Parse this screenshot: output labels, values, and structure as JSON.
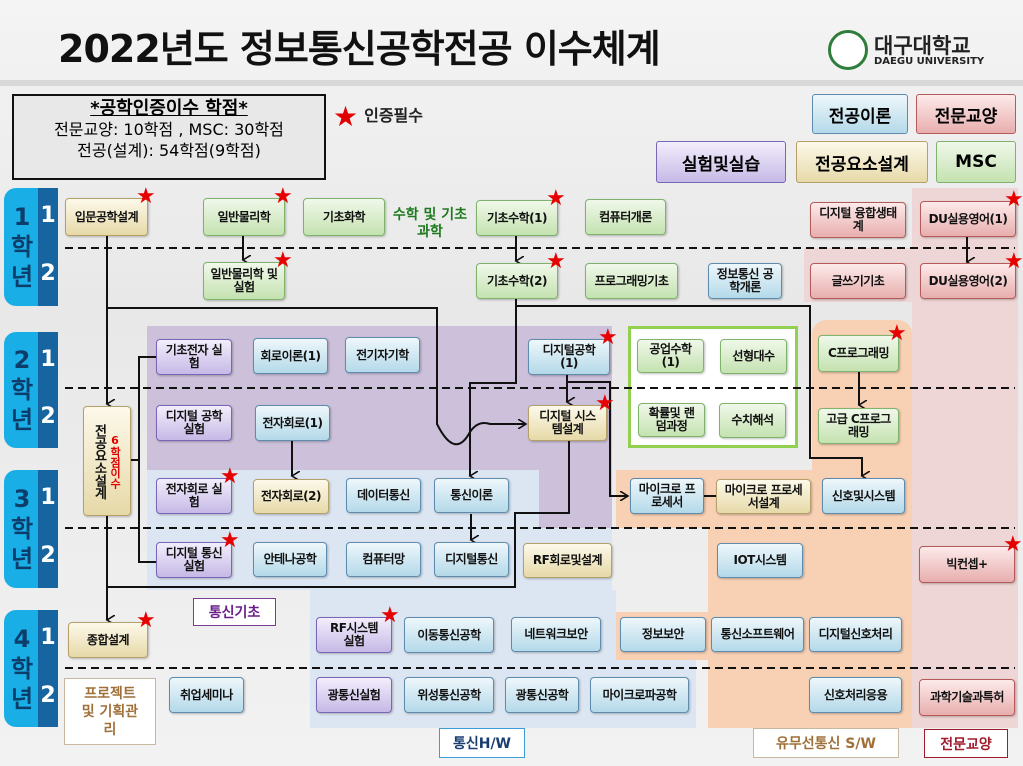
{
  "header": {
    "title": "2022년도 정보통신공학전공 이수체계",
    "logo_ko": "대구대학교",
    "logo_en": "DAEGU UNIVERSITY"
  },
  "credits": {
    "heading": "*공학인증이수 학점*",
    "line1": "전문교양: 10학점 , MSC: 30학점",
    "line2": "전공(설계): 54학점(9학점)"
  },
  "required_legend": {
    "icon": "red-star-icon",
    "label": "인증필수"
  },
  "legend": [
    {
      "label": "전공이론",
      "color": "#b4d9e9"
    },
    {
      "label": "전문교양",
      "color": "#e8aeae"
    },
    {
      "label": "실험및실습",
      "color": "#c6b9e6"
    },
    {
      "label": "전공요소설계",
      "color": "#e6d9a8"
    },
    {
      "label": "MSC",
      "color": "#c4e2b0"
    }
  ],
  "years": [
    {
      "year": "1",
      "word": [
        "학",
        "년"
      ],
      "semesters": [
        "1",
        "2"
      ]
    },
    {
      "year": "2",
      "word": [
        "학",
        "년"
      ],
      "semesters": [
        "1",
        "2"
      ]
    },
    {
      "year": "3",
      "word": [
        "학",
        "년"
      ],
      "semesters": [
        "1",
        "2"
      ]
    },
    {
      "year": "4",
      "word": [
        "학",
        "년"
      ],
      "semesters": [
        "1",
        "2"
      ]
    }
  ],
  "msc_group_label": "수학 및 기초과학",
  "design_elective": {
    "label": "전공요소설계",
    "note": "6학점이수"
  },
  "project_label": "프로젝트 및 기획관리",
  "tracks": {
    "comm_basic": "통신기초",
    "comm_hw": "통신H/W",
    "sw": "유무선통신 S/W",
    "liberal": "전문교양"
  },
  "courses": [
    {
      "label": "입문공학설계",
      "type": "design",
      "required": true
    },
    {
      "label": "일반물리학",
      "type": "msc",
      "required": true
    },
    {
      "label": "기초화학",
      "type": "msc",
      "required": false
    },
    {
      "label": "기초수학(1)",
      "type": "msc",
      "required": true
    },
    {
      "label": "컴퓨터개론",
      "type": "msc",
      "required": false
    },
    {
      "label": "디지털 융합생태계",
      "type": "liberal",
      "required": false
    },
    {
      "label": "DU실용영어(1)",
      "type": "liberal",
      "required": true
    },
    {
      "label": "일반물리학 및 실험",
      "type": "msc",
      "required": true
    },
    {
      "label": "기초수학(2)",
      "type": "msc",
      "required": true
    },
    {
      "label": "프로그래밍기초",
      "type": "msc",
      "required": false
    },
    {
      "label": "정보통신 공학개론",
      "type": "major",
      "required": false
    },
    {
      "label": "글쓰기기초",
      "type": "liberal",
      "required": false
    },
    {
      "label": "DU실용영어(2)",
      "type": "liberal",
      "required": true
    },
    {
      "label": "기초전자 실험",
      "type": "lab",
      "required": false
    },
    {
      "label": "회로이론(1)",
      "type": "major",
      "required": false
    },
    {
      "label": "전기자기학",
      "type": "major",
      "required": false
    },
    {
      "label": "디지털공학(1)",
      "type": "major",
      "required": true
    },
    {
      "label": "공업수학(1)",
      "type": "msc",
      "required": false
    },
    {
      "label": "선형대수",
      "type": "msc",
      "required": false
    },
    {
      "label": "C프로그래밍",
      "type": "msc",
      "required": true
    },
    {
      "label": "디지털 공학실험",
      "type": "lab",
      "required": false
    },
    {
      "label": "전자회로(1)",
      "type": "major",
      "required": false
    },
    {
      "label": "디지털 시스템설계",
      "type": "design",
      "required": true
    },
    {
      "label": "확률및 랜덤과정",
      "type": "msc",
      "required": false
    },
    {
      "label": "수치해석",
      "type": "msc",
      "required": false
    },
    {
      "label": "고급 C프로그래밍",
      "type": "msc",
      "required": false
    },
    {
      "label": "전자회로 실험",
      "type": "lab",
      "required": true
    },
    {
      "label": "전자회로(2)",
      "type": "design",
      "required": false
    },
    {
      "label": "데이터통신",
      "type": "major",
      "required": false
    },
    {
      "label": "통신이론",
      "type": "major",
      "required": false
    },
    {
      "label": "마이크로 프로세서",
      "type": "major",
      "required": false
    },
    {
      "label": "마이크로 프로세서설계",
      "type": "design",
      "required": false
    },
    {
      "label": "신호및시스템",
      "type": "major",
      "required": false
    },
    {
      "label": "디지털 통신실험",
      "type": "lab",
      "required": true
    },
    {
      "label": "안테나공학",
      "type": "major",
      "required": false
    },
    {
      "label": "컴퓨터망",
      "type": "major",
      "required": false
    },
    {
      "label": "디지털통신",
      "type": "major",
      "required": false
    },
    {
      "label": "RF회로및설계",
      "type": "design",
      "required": false
    },
    {
      "label": "IOT시스템",
      "type": "major",
      "required": false
    },
    {
      "label": "빅컨셉+",
      "type": "liberal",
      "required": true
    },
    {
      "label": "종합설계",
      "type": "design",
      "required": true
    },
    {
      "label": "RF시스템 실험",
      "type": "lab",
      "required": true
    },
    {
      "label": "이동통신공학",
      "type": "major",
      "required": false
    },
    {
      "label": "네트워크보안",
      "type": "major",
      "required": false
    },
    {
      "label": "정보보안",
      "type": "major",
      "required": false
    },
    {
      "label": "통신소프트웨어",
      "type": "major",
      "required": false
    },
    {
      "label": "디지털신호처리",
      "type": "major",
      "required": false
    },
    {
      "label": "취업세미나",
      "type": "major",
      "required": false
    },
    {
      "label": "광통신실험",
      "type": "lab",
      "required": false
    },
    {
      "label": "위성통신공학",
      "type": "major",
      "required": false
    },
    {
      "label": "광통신공학",
      "type": "major",
      "required": false
    },
    {
      "label": "마이크로파공학",
      "type": "major",
      "required": false
    },
    {
      "label": "신호처리응용",
      "type": "major",
      "required": false
    },
    {
      "label": "과학기술과특허",
      "type": "liberal",
      "required": false
    }
  ]
}
